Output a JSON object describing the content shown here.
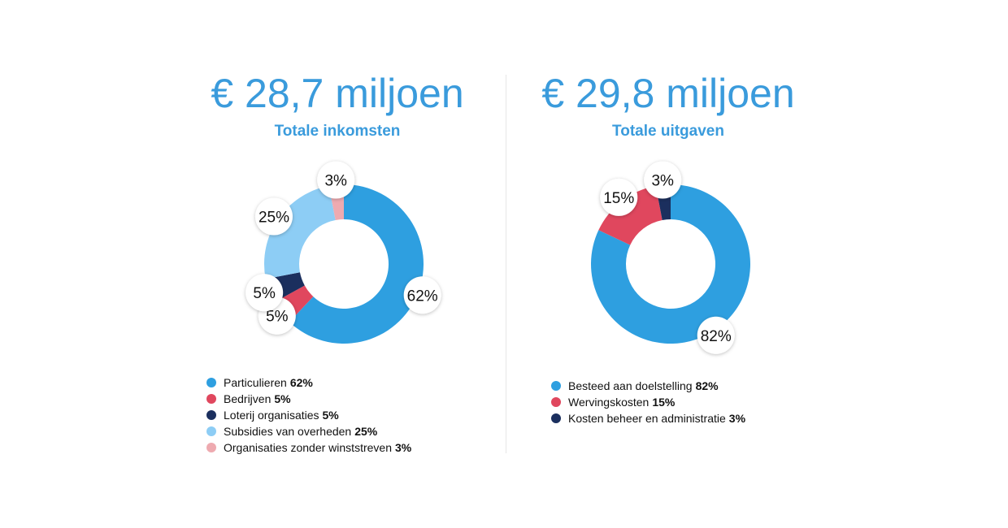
{
  "chart_data": [
    {
      "type": "pie",
      "variant": "donut",
      "headline": "€ 28,7 miljoen",
      "title": "Totale inkomsten",
      "slices": [
        {
          "label": "Particulieren",
          "value": 62,
          "display": "62%",
          "color": "#2e9fe0"
        },
        {
          "label": "Bedrijven",
          "value": 5,
          "display": "5%",
          "color": "#e0475e"
        },
        {
          "label": "Loterij organisaties",
          "value": 5,
          "display": "5%",
          "color": "#1b2f5e"
        },
        {
          "label": "Subsidies van overheden",
          "value": 25,
          "display": "25%",
          "color": "#8dcdf5"
        },
        {
          "label": "Organisaties zonder winststreven",
          "value": 3,
          "display": "3%",
          "color": "#eeaab0"
        }
      ]
    },
    {
      "type": "pie",
      "variant": "donut",
      "headline": "€ 29,8 miljoen",
      "title": "Totale uitgaven",
      "slices": [
        {
          "label": "Besteed aan doelstelling",
          "value": 82,
          "display": "82%",
          "color": "#2e9fe0"
        },
        {
          "label": "Wervingskosten",
          "value": 15,
          "display": "15%",
          "color": "#e0475e"
        },
        {
          "label": "Kosten beheer en administratie",
          "value": 3,
          "display": "3%",
          "color": "#1b2f5e"
        }
      ]
    }
  ]
}
